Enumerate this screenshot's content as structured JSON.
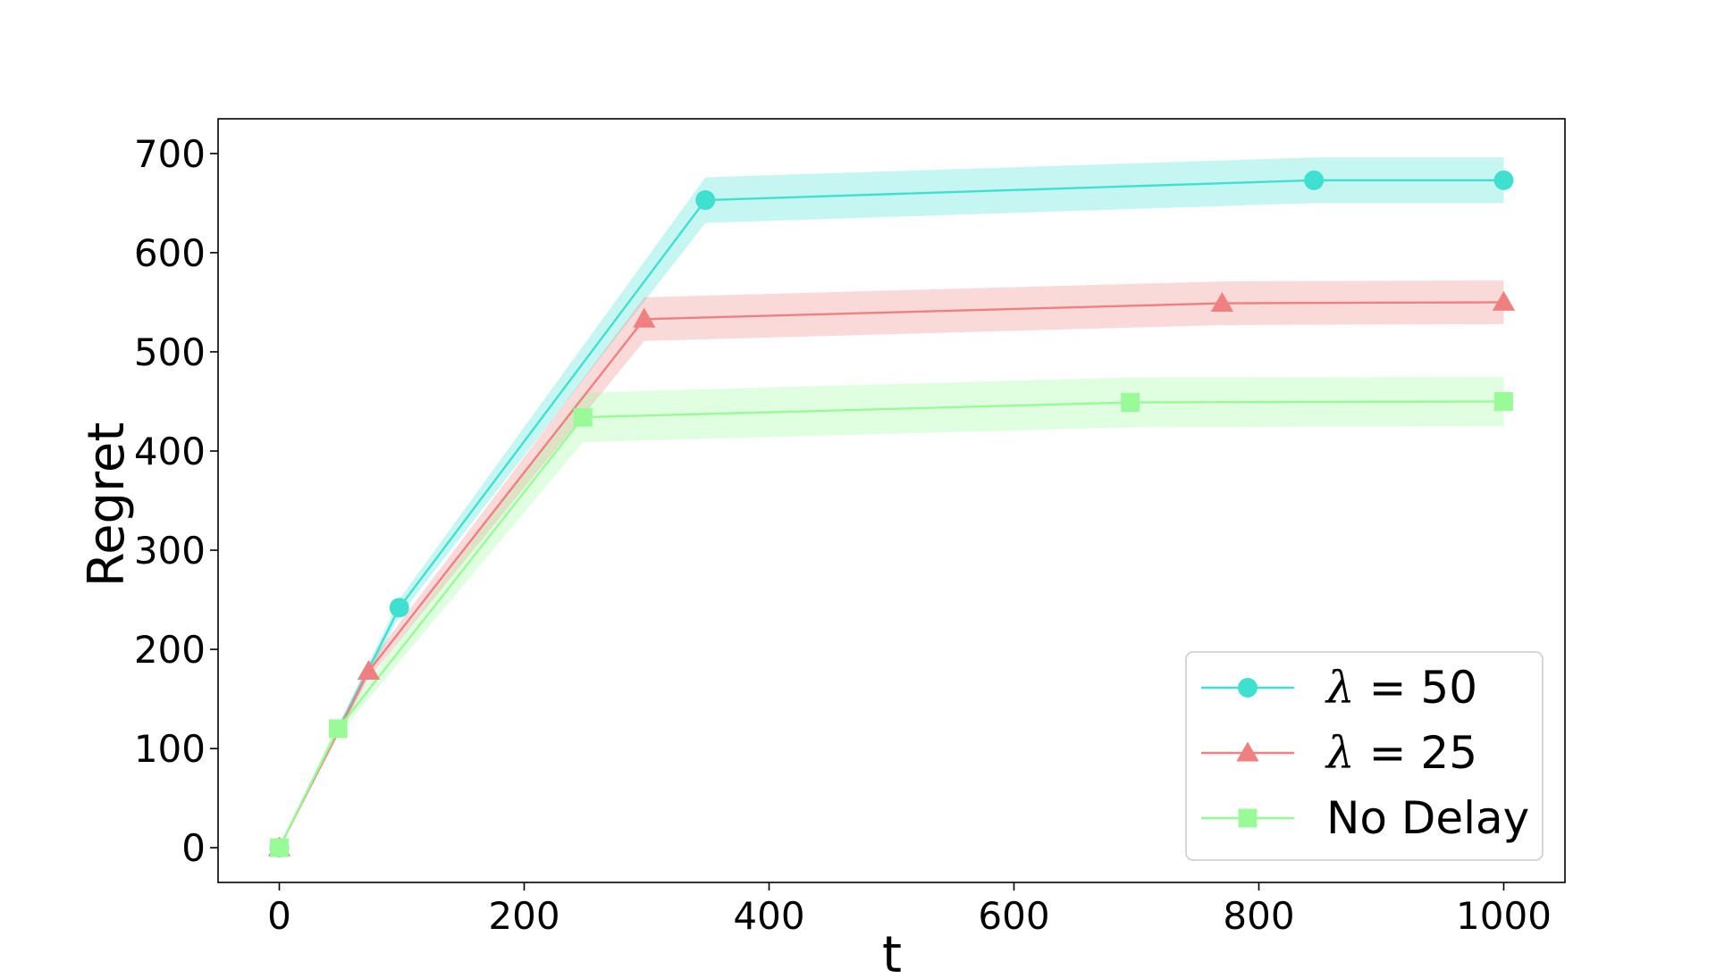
{
  "chart_data": {
    "type": "line",
    "xlabel": "t",
    "ylabel": "Regret",
    "xlim": [
      -50,
      1050
    ],
    "ylim": [
      -35,
      735
    ],
    "xticks": [
      0,
      200,
      400,
      600,
      800,
      1000
    ],
    "yticks": [
      0,
      100,
      200,
      300,
      400,
      500,
      600,
      700
    ],
    "grid": false,
    "legend_position": "lower-right",
    "series": [
      {
        "name": "λ = 50",
        "legend_symbol": "λ",
        "legend_rest": " = 50",
        "color": "#40E0D0",
        "marker": "circle",
        "x": [
          0,
          98,
          348,
          845,
          1000
        ],
        "y": [
          0,
          242,
          653,
          673,
          673
        ],
        "band": 23
      },
      {
        "name": "λ = 25",
        "legend_symbol": "λ",
        "legend_rest": " = 25",
        "color": "#F08080",
        "marker": "triangle",
        "x": [
          0,
          73,
          298,
          770,
          1000
        ],
        "y": [
          0,
          178,
          533,
          549,
          550
        ],
        "band": 22
      },
      {
        "name": "No Delay",
        "legend_symbol": "",
        "legend_rest": "No Delay",
        "color": "#98FB98",
        "marker": "square",
        "x": [
          0,
          48,
          248,
          695,
          1000
        ],
        "y": [
          0,
          120,
          434,
          449,
          450
        ],
        "band": 25
      }
    ]
  }
}
